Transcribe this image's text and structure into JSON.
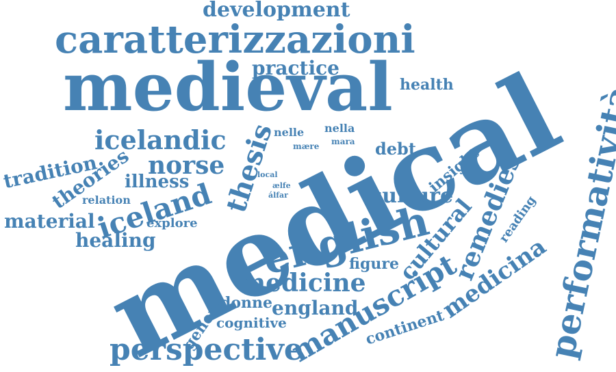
{
  "color": "#4682b4",
  "words": {
    "medical": "medical",
    "medieval": "medieval",
    "caratterizzazioni": "caratterizzazioni",
    "development": "development",
    "english": "english",
    "performativita": "performatività",
    "manuscript": "manuscript",
    "perspective": "perspective",
    "medicine": "medicine",
    "iceland": "iceland",
    "icelandic": "icelandic",
    "norse": "norse",
    "remedies": "remedies",
    "cultural": "cultural",
    "medicina": "medicina",
    "culture": "culture",
    "thesis": "thesis",
    "practice": "practice",
    "material": "material",
    "tradition": "tradition",
    "theories": "theories",
    "illness": "illness",
    "healing": "healing",
    "england": "england",
    "health": "health",
    "insight": "insight",
    "debt": "debt",
    "figure": "figure",
    "donne": "donne",
    "cognitive": "cognitive",
    "continent": "continent",
    "genere": "genere",
    "explore": "explore",
    "relation": "relation",
    "reading": "reading",
    "nelle": "nelle",
    "nella": "nella",
    "mare": "mære",
    "mara": "mara",
    "local": "local",
    "aelfe": "ælfe",
    "alfar": "álfar"
  }
}
